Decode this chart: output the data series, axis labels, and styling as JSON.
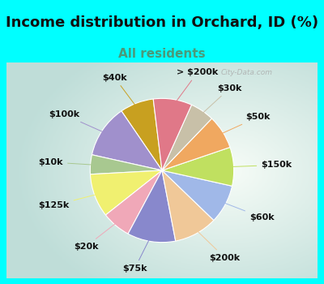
{
  "title": "Income distribution in Orchard, ID (%)",
  "subtitle": "All residents",
  "bg_cyan": "#00FFFF",
  "bg_chart_edge": "#b2e8d8",
  "labels": [
    "$40k",
    "$100k",
    "$10k",
    "$125k",
    "$20k",
    "$75k",
    "$200k",
    "$60k",
    "$150k",
    "$50k",
    "$30k",
    "> $200k"
  ],
  "values": [
    7,
    11,
    4,
    9,
    6,
    10,
    9,
    8,
    8,
    7,
    5,
    8
  ],
  "colors": [
    "#C8A020",
    "#A090CC",
    "#A8C890",
    "#F0F070",
    "#F0A8B8",
    "#8888CC",
    "#F0C898",
    "#A0B8E8",
    "#C0E060",
    "#F0A860",
    "#C8C0A8",
    "#E07888"
  ],
  "start_angle": 97,
  "title_fontsize": 13,
  "subtitle_fontsize": 11,
  "label_fontsize": 8,
  "subtitle_color": "#4a9a7a"
}
